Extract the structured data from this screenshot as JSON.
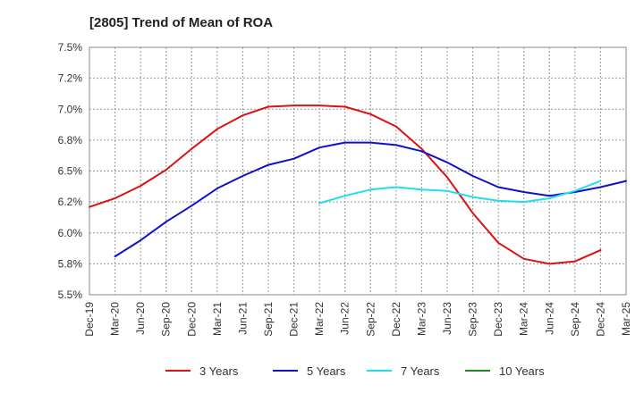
{
  "chart_data": {
    "type": "line",
    "title": "[2805]  Trend of Mean of ROA",
    "xlabel": "",
    "ylabel": "",
    "ylim": [
      5.5,
      7.5
    ],
    "y_ticks": [
      "7.5%",
      "7.2%",
      "7.0%",
      "6.8%",
      "6.5%",
      "6.2%",
      "6.0%",
      "5.8%",
      "5.5%"
    ],
    "y_tick_values": [
      7.5,
      7.25,
      7.0,
      6.75,
      6.5,
      6.25,
      6.0,
      5.75,
      5.5
    ],
    "x_ticks": [
      "Dec-19",
      "Mar-20",
      "Jun-20",
      "Sep-20",
      "Dec-20",
      "Mar-21",
      "Jun-21",
      "Sep-21",
      "Dec-21",
      "Mar-22",
      "Jun-22",
      "Sep-22",
      "Dec-22",
      "Mar-23",
      "Jun-23",
      "Sep-23",
      "Dec-23",
      "Mar-24",
      "Jun-24",
      "Sep-24",
      "Dec-24",
      "Mar-25"
    ],
    "grid": true,
    "legend_position": "bottom",
    "series": [
      {
        "name": "3 Years",
        "color": "#dd1111",
        "start_index": 0,
        "values": [
          6.21,
          6.28,
          6.38,
          6.51,
          6.68,
          6.84,
          6.95,
          7.02,
          7.03,
          7.03,
          7.02,
          6.96,
          6.86,
          6.68,
          6.45,
          6.16,
          5.92,
          5.79,
          5.75,
          5.77,
          5.86
        ]
      },
      {
        "name": "5 Years",
        "color": "#1111cc",
        "start_index": 1,
        "values": [
          5.81,
          5.94,
          6.09,
          6.22,
          6.36,
          6.46,
          6.55,
          6.6,
          6.69,
          6.73,
          6.73,
          6.71,
          6.66,
          6.57,
          6.46,
          6.37,
          6.33,
          6.3,
          6.33,
          6.37,
          6.42
        ]
      },
      {
        "name": "7 Years",
        "color": "#22ddee",
        "start_index": 9,
        "values": [
          6.24,
          6.3,
          6.35,
          6.37,
          6.35,
          6.34,
          6.29,
          6.26,
          6.25,
          6.28,
          6.34,
          6.42
        ]
      },
      {
        "name": "10 Years",
        "color": "#228822",
        "start_index": 0,
        "values": []
      }
    ]
  }
}
